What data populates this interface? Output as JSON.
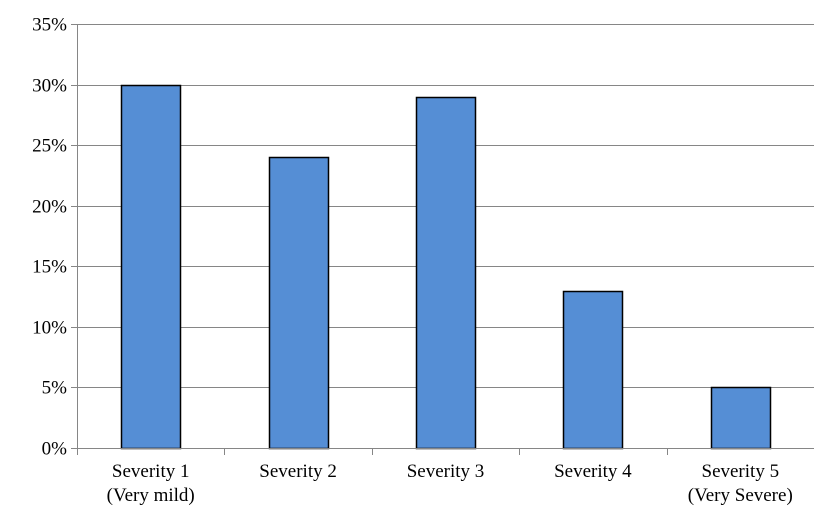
{
  "chart_data": {
    "type": "bar",
    "categories": [
      [
        "Severity 1",
        "(Very mild)"
      ],
      [
        "Severity 2"
      ],
      [
        "Severity 3"
      ],
      [
        "Severity 4"
      ],
      [
        "Severity 5",
        "(Very Severe)"
      ]
    ],
    "values": [
      0.3,
      0.24,
      0.29,
      0.13,
      0.05
    ],
    "ylim": [
      0,
      0.35
    ],
    "yticks": [
      0,
      0.05,
      0.1,
      0.15,
      0.2,
      0.25,
      0.3,
      0.35
    ],
    "ytick_labels": [
      "0%",
      "5%",
      "10%",
      "15%",
      "20%",
      "25%",
      "30%",
      "35%"
    ],
    "grid": true,
    "legend": "none",
    "title": "",
    "xlabel": "",
    "ylabel": "",
    "colors": {
      "bar_fill": "#558ED5",
      "bar_stroke": "#000000",
      "grid": "#868686",
      "axis": "#868686"
    }
  }
}
